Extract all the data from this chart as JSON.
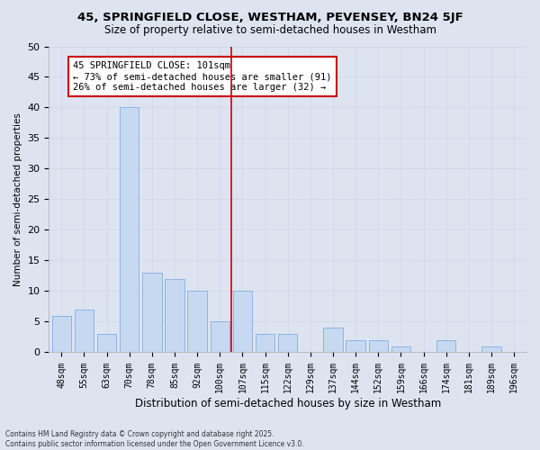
{
  "title1": "45, SPRINGFIELD CLOSE, WESTHAM, PEVENSEY, BN24 5JF",
  "title2": "Size of property relative to semi-detached houses in Westham",
  "xlabel": "Distribution of semi-detached houses by size in Westham",
  "ylabel": "Number of semi-detached properties",
  "footnote": "Contains HM Land Registry data © Crown copyright and database right 2025.\nContains public sector information licensed under the Open Government Licence v3.0.",
  "bin_labels": [
    "48sqm",
    "55sqm",
    "63sqm",
    "70sqm",
    "78sqm",
    "85sqm",
    "92sqm",
    "100sqm",
    "107sqm",
    "115sqm",
    "122sqm",
    "129sqm",
    "137sqm",
    "144sqm",
    "152sqm",
    "159sqm",
    "166sqm",
    "174sqm",
    "181sqm",
    "189sqm",
    "196sqm"
  ],
  "bar_values": [
    6,
    7,
    3,
    40,
    13,
    12,
    10,
    5,
    10,
    3,
    3,
    0,
    4,
    2,
    2,
    1,
    0,
    2,
    0,
    1,
    0
  ],
  "bar_color": "#c6d9f1",
  "bar_edge_color": "#8db4e3",
  "reference_line_x": 7.5,
  "annotation_text": "45 SPRINGFIELD CLOSE: 101sqm\n← 73% of semi-detached houses are smaller (91)\n26% of semi-detached houses are larger (32) →",
  "annotation_box_color": "#ffffff",
  "annotation_box_edge": "#cc0000",
  "vline_color": "#cc0000",
  "grid_color": "#d0d8e8",
  "background_color": "#dde4f0",
  "plot_bg_color": "#dde4f0",
  "ylim": [
    0,
    50
  ],
  "yticks": [
    0,
    5,
    10,
    15,
    20,
    25,
    30,
    35,
    40,
    45,
    50
  ]
}
